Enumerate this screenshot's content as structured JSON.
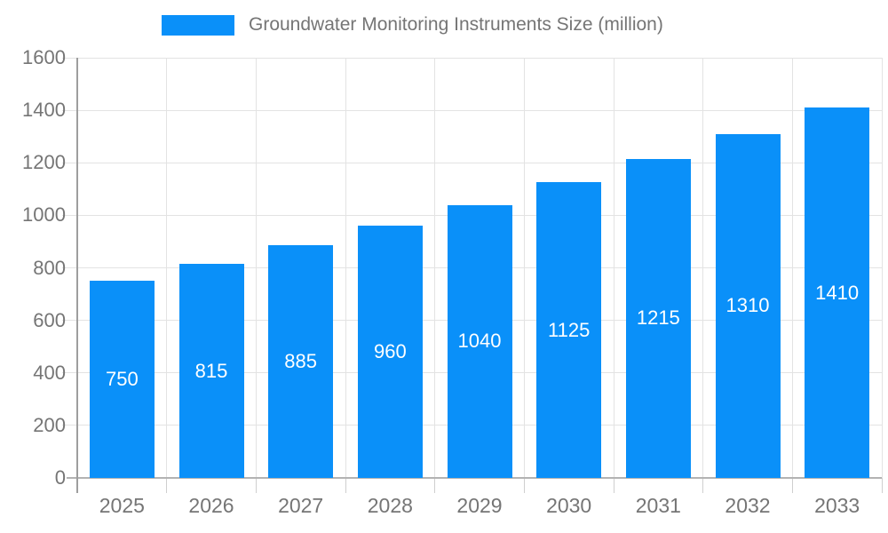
{
  "legend": {
    "label": "Groundwater Monitoring Instruments Size (million)"
  },
  "chart_data": {
    "type": "bar",
    "title": "Groundwater Monitoring Instruments Size (million)",
    "categories": [
      "2025",
      "2026",
      "2027",
      "2028",
      "2029",
      "2030",
      "2031",
      "2032",
      "2033"
    ],
    "values": [
      750,
      815,
      885,
      960,
      1040,
      1125,
      1215,
      1310,
      1410
    ],
    "series": [
      {
        "name": "Groundwater Monitoring Instruments Size (million)",
        "values": [
          750,
          815,
          885,
          960,
          1040,
          1125,
          1215,
          1310,
          1410
        ]
      }
    ],
    "xlabel": "",
    "ylabel": "",
    "ylim": [
      0,
      1600
    ],
    "ytick_step": 200,
    "ytick_labels": [
      "0",
      "200",
      "400",
      "600",
      "800",
      "1000",
      "1200",
      "1400",
      "1600"
    ],
    "grid": true,
    "legend_position": "top",
    "bar_labels_inside": true,
    "colors": {
      "bar": "#0a90f9",
      "bar_label": "#ffffff",
      "axis_text": "#757575",
      "gridline": "#e3e3e3",
      "axis_line": "#9e9e9e",
      "background": "#ffffff"
    }
  }
}
